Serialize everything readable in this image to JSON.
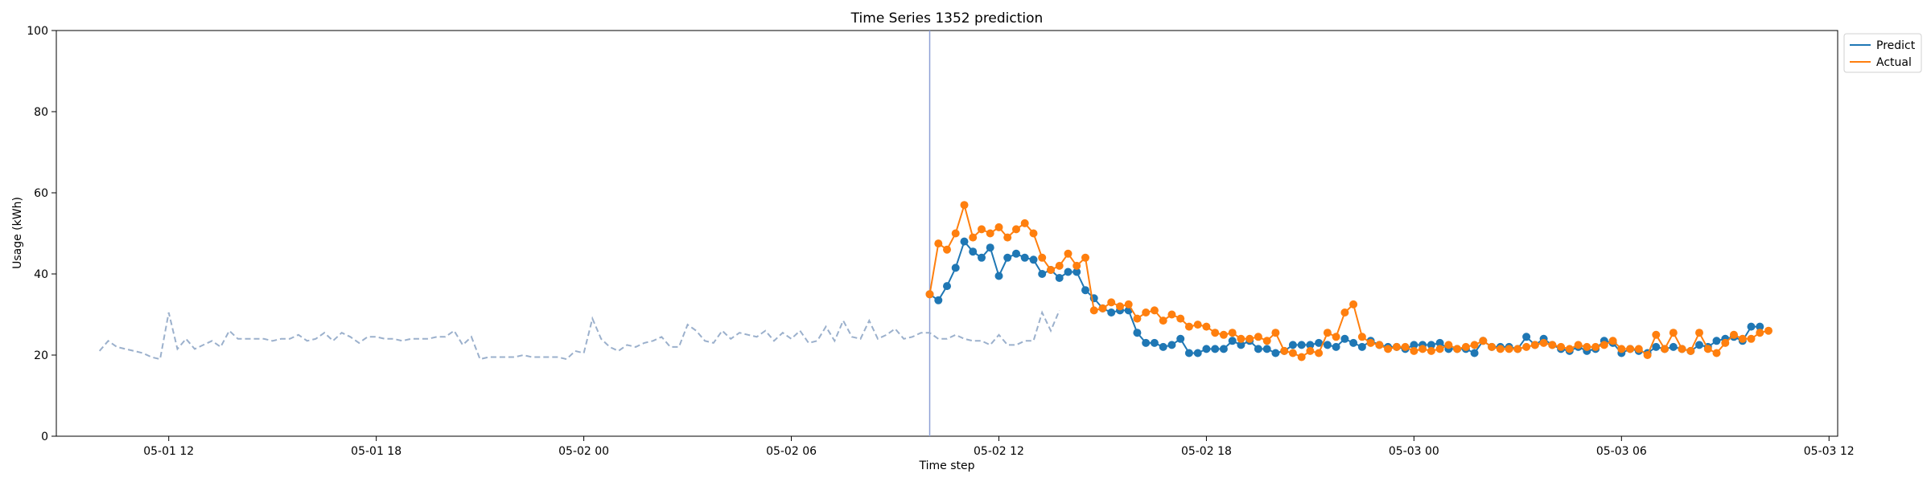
{
  "chart_data": {
    "type": "line",
    "title": "Time Series 1352 prediction",
    "xlabel": "Time step",
    "ylabel": "Usage (kWh)",
    "ylim": [
      0,
      100
    ],
    "yticks": [
      0,
      20,
      40,
      60,
      80,
      100
    ],
    "xlim": [
      "2024-05-01 08:45",
      "2024-05-03 12:15"
    ],
    "xticks": [
      {
        "t": "2024-05-01 12:00",
        "label": "05-01 12"
      },
      {
        "t": "2024-05-01 18:00",
        "label": "05-01 18"
      },
      {
        "t": "2024-05-02 00:00",
        "label": "05-02 00"
      },
      {
        "t": "2024-05-02 06:00",
        "label": "05-02 06"
      },
      {
        "t": "2024-05-02 12:00",
        "label": "05-02 12"
      },
      {
        "t": "2024-05-02 18:00",
        "label": "05-02 18"
      },
      {
        "t": "2024-05-03 00:00",
        "label": "05-03 00"
      },
      {
        "t": "2024-05-03 06:00",
        "label": "05-03 06"
      },
      {
        "t": "2024-05-03 12:00",
        "label": "05-03 12"
      }
    ],
    "grid": false,
    "legend_position": "upper-right-outside",
    "split_time": "2024-05-02 10:00",
    "colors": {
      "history": "#9bb0cc",
      "predict": "#1f77b4",
      "actual": "#ff7f0e",
      "split_line": "#8ea0d6"
    },
    "history": {
      "start": "2024-05-01 10:00",
      "step_minutes": 15,
      "values": [
        21,
        23.5,
        22,
        21.5,
        21,
        20.5,
        19.5,
        19,
        30.5,
        21.5,
        24,
        21.5,
        22.5,
        23.5,
        22,
        26,
        24,
        24,
        24,
        24,
        23.5,
        24,
        24,
        25,
        23.5,
        24,
        25.5,
        23.5,
        25.5,
        24.5,
        23,
        24.5,
        24.5,
        24,
        24,
        23.5,
        24,
        24,
        24,
        24.5,
        24.5,
        26,
        22.5,
        24.5,
        19,
        19.5,
        19.5,
        19.5,
        19.5,
        20,
        19.5,
        19.5,
        19.5,
        19.5,
        19,
        21,
        20.5,
        29,
        24,
        22,
        21,
        22.5,
        22,
        23,
        23.5,
        24.5,
        22,
        22,
        27.5,
        26,
        23.5,
        23,
        26,
        24,
        25.5,
        25,
        24.5,
        26,
        23.5,
        25.5,
        24,
        26,
        23,
        23.5,
        27,
        23.5,
        28.5,
        24.5,
        24,
        28.5,
        24,
        25,
        26.5,
        24,
        24.5,
        25.5,
        25.5,
        24,
        24,
        25,
        24,
        23.5,
        23.5,
        22.5,
        25,
        22.5,
        22.5,
        23.5,
        23.5,
        30.5,
        26,
        31
      ]
    },
    "series": [
      {
        "name": "Predict",
        "start": "2024-05-02 10:00",
        "step_minutes": 15,
        "values": [
          35,
          33.5,
          37,
          41.5,
          48,
          45.5,
          44,
          46.5,
          39.5,
          44,
          45,
          44,
          43.5,
          40,
          41,
          39,
          40.5,
          40.5,
          36,
          34,
          31.5,
          30.5,
          31,
          31,
          25.5,
          23,
          23,
          22,
          22.5,
          24,
          20.5,
          20.5,
          21.5,
          21.5,
          21.5,
          23.5,
          22.5,
          23.5,
          21.5,
          21.5,
          20.5,
          21,
          22.5,
          22.5,
          22.5,
          23,
          22.5,
          22,
          24,
          23,
          22,
          23.5,
          22.5,
          22,
          22,
          21.5,
          22.5,
          22.5,
          22.5,
          23,
          21.5,
          21.5,
          21.5,
          20.5,
          23.5,
          22,
          22,
          22,
          21.5,
          24.5,
          22.5,
          24,
          22.5,
          21.5,
          21,
          22,
          21,
          21.5,
          23.5,
          23,
          20.5,
          21.5,
          21,
          20.5,
          22,
          21.5,
          22,
          21.5,
          21,
          22.5,
          22,
          23.5,
          24,
          24.5,
          23.5,
          27,
          27
        ]
      },
      {
        "name": "Actual",
        "start": "2024-05-02 10:00",
        "step_minutes": 15,
        "values": [
          35,
          47.5,
          46,
          50,
          57,
          49,
          51,
          50,
          51.5,
          49,
          51,
          52.5,
          50,
          44,
          41,
          42,
          45,
          42,
          44,
          31,
          31.5,
          33,
          32,
          32.5,
          29,
          30.5,
          31,
          28.5,
          30,
          29,
          27,
          27.5,
          27,
          25.5,
          25,
          25.5,
          24,
          24,
          24.5,
          23.5,
          25.5,
          21,
          20.5,
          19.5,
          21,
          20.5,
          25.5,
          24.5,
          30.5,
          32.5,
          24.5,
          23,
          22.5,
          21.5,
          22,
          22,
          21,
          21.5,
          21,
          21.5,
          22.5,
          21.5,
          22,
          22.5,
          23.5,
          22,
          21.5,
          21.5,
          21.5,
          22,
          22.5,
          23,
          22.5,
          22,
          21.5,
          22.5,
          22,
          22,
          22.5,
          23.5,
          21.5,
          21.5,
          21.5,
          20,
          25,
          21.5,
          25.5,
          21.5,
          21,
          25.5,
          21.5,
          20.5,
          23,
          25,
          24,
          24,
          25.5,
          26
        ]
      }
    ]
  }
}
